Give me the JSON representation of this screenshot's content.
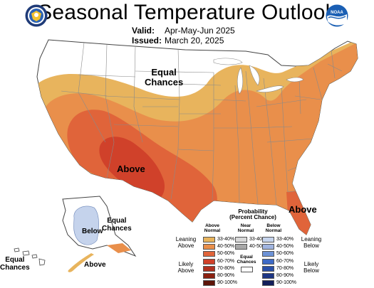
{
  "header": {
    "title": "Seasonal Temperature Outlook",
    "valid_label": "Valid:",
    "valid_value": "Apr-May-Jun 2025",
    "issued_label": "Issued:",
    "issued_value": "March 20, 2025",
    "noaa_text": "NOAA"
  },
  "map": {
    "labels": {
      "equal_chances_main": [
        "Equal",
        "Chances"
      ],
      "above_main": "Above",
      "above_florida": "Above",
      "alaska_below": "Below",
      "alaska_equal": [
        "Equal",
        "Chances"
      ],
      "alaska_above": "Above",
      "hawaii_equal": [
        "Equal",
        "Chances"
      ]
    },
    "colors": {
      "above_33_40": "#e8b45d",
      "above_40_50": "#e98f4b",
      "above_50_60": "#e0643a",
      "above_60_70": "#d0412a",
      "below_33_40": "#c5d3ec",
      "state_line": "#8a8a8a",
      "outline": "#444444"
    }
  },
  "legend": {
    "title": [
      "Probability",
      "(Percent Chance)"
    ],
    "columns": {
      "above": [
        "Above",
        "Normal"
      ],
      "near": [
        "Near",
        "Normal"
      ],
      "below": [
        "Below",
        "Normal"
      ]
    },
    "above_ranges": [
      "33-40%",
      "40-50%",
      "50-60%",
      "60-70%",
      "70-80%",
      "80-90%",
      "90-100%"
    ],
    "above_colors": [
      "#e8b45d",
      "#e98f4b",
      "#e0643a",
      "#d0412a",
      "#b03020",
      "#8a2010",
      "#5e1408"
    ],
    "near_ranges": [
      "33-40%",
      "40-50%"
    ],
    "near_colors": [
      "#d8d8d8",
      "#a8a8a8"
    ],
    "below_ranges": [
      "33-40%",
      "40-50%",
      "50-60%",
      "60-70%",
      "70-80%",
      "80-90%",
      "90-100%"
    ],
    "below_colors": [
      "#c5d3ec",
      "#a0b4e0",
      "#6c92d6",
      "#3f6bc7",
      "#2a4fa8",
      "#1d3584",
      "#121e5a"
    ],
    "leaning_above": [
      "Leaning",
      "Above"
    ],
    "likely_above": [
      "Likely",
      "Above"
    ],
    "leaning_below": [
      "Leaning",
      "Below"
    ],
    "likely_below": [
      "Likely",
      "Below"
    ],
    "equal_chances": [
      "Equal",
      "Chances"
    ]
  }
}
